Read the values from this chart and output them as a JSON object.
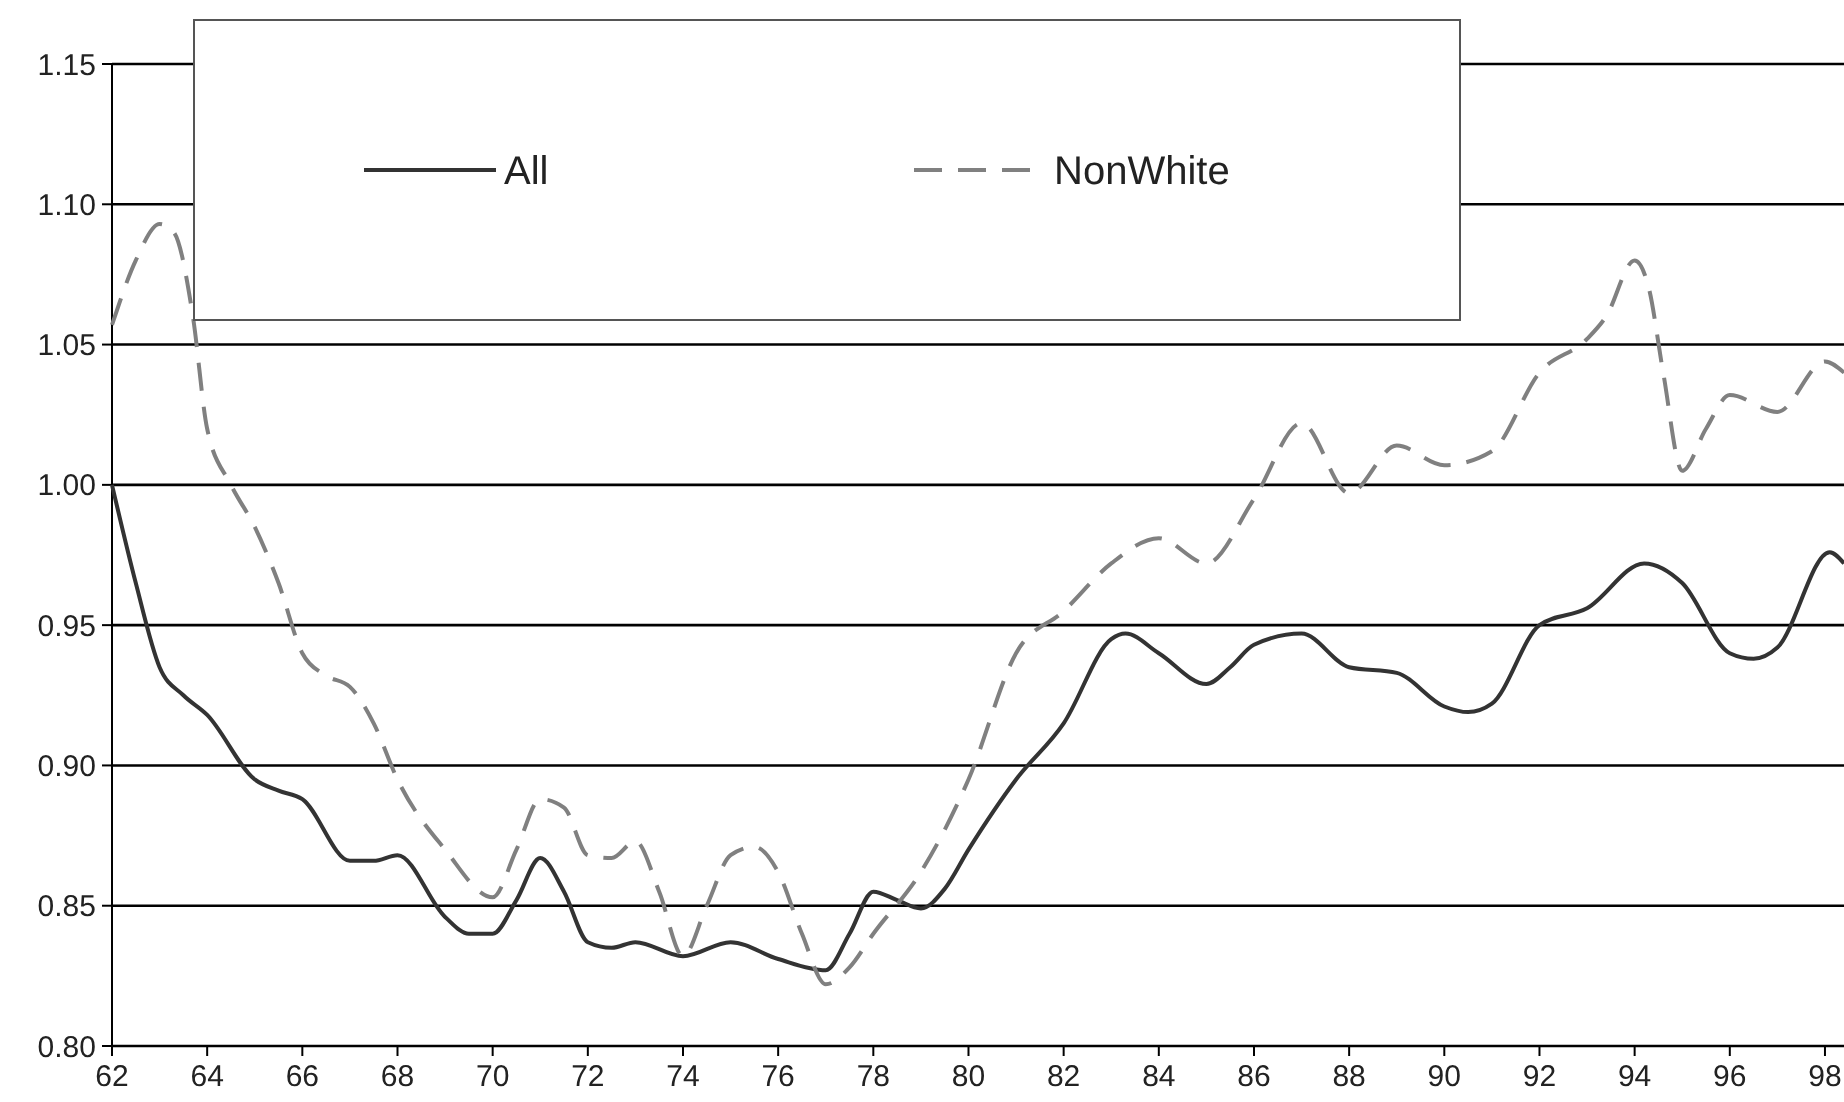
{
  "chart_data": {
    "type": "line",
    "xlim": [
      62,
      98.4
    ],
    "xticks": [
      62,
      64,
      66,
      68,
      70,
      72,
      74,
      76,
      78,
      80,
      82,
      84,
      86,
      88,
      90,
      92,
      94,
      96,
      98
    ],
    "ylim": [
      0.8,
      1.15
    ],
    "yticks": [
      {
        "value": 0.8,
        "label": "0.80"
      },
      {
        "value": 0.85,
        "label": "0.85"
      },
      {
        "value": 0.9,
        "label": "0.90"
      },
      {
        "value": 0.95,
        "label": "0.95"
      },
      {
        "value": 1.0,
        "label": "1.00"
      },
      {
        "value": 1.05,
        "label": "1.05"
      },
      {
        "value": 1.1,
        "label": "1.10"
      },
      {
        "value": 1.15,
        "label": "1.15"
      }
    ],
    "grid": "y",
    "legend": "top",
    "marker": "none",
    "series": [
      {
        "name": "All",
        "color": "#333333",
        "line_style": "solid",
        "x": [
          62,
          62.5,
          63,
          63.5,
          64,
          65,
          65.5,
          66,
          67,
          67.5,
          68,
          69,
          69.5,
          70,
          70.5,
          71,
          71.5,
          72,
          72.5,
          73,
          74,
          75,
          76,
          77,
          77.5,
          78,
          78.5,
          79,
          79.5,
          80,
          81,
          82,
          83,
          83.3,
          84,
          85,
          85.5,
          86,
          87,
          88,
          89,
          90,
          90.5,
          91,
          92,
          93,
          94.2,
          95,
          96,
          96.5,
          97,
          98.1,
          98.4
        ],
        "values": [
          1.0,
          0.965,
          0.935,
          0.925,
          0.918,
          0.895,
          0.891,
          0.888,
          0.866,
          0.866,
          0.868,
          0.846,
          0.84,
          0.84,
          0.852,
          0.867,
          0.855,
          0.837,
          0.835,
          0.837,
          0.832,
          0.837,
          0.831,
          0.827,
          0.84,
          0.855,
          0.852,
          0.849,
          0.856,
          0.87,
          0.895,
          0.915,
          0.945,
          0.947,
          0.94,
          0.929,
          0.935,
          0.943,
          0.947,
          0.935,
          0.933,
          0.921,
          0.919,
          0.922,
          0.95,
          0.956,
          0.972,
          0.965,
          0.94,
          0.938,
          0.942,
          0.976,
          0.972
        ]
      },
      {
        "name": "NonWhite",
        "color": "#808080",
        "line_style": "dashed",
        "x": [
          62,
          62.5,
          63,
          63.3,
          63.7,
          64,
          64.5,
          65,
          65.5,
          66,
          66.5,
          67,
          67.5,
          68,
          69,
          70,
          70.5,
          71,
          71.5,
          72,
          72.5,
          73,
          73.5,
          74,
          74.5,
          75,
          75.5,
          76,
          76.5,
          77,
          77.5,
          78,
          79,
          80,
          81,
          82,
          83,
          84,
          85,
          86,
          87,
          88,
          89,
          90,
          91,
          92,
          93,
          93.4,
          94,
          94.3,
          94.6,
          95,
          95.5,
          96,
          97,
          98,
          98.4
        ],
        "values": [
          1.057,
          1.08,
          1.093,
          1.09,
          1.06,
          1.02,
          1.0,
          0.985,
          0.965,
          0.94,
          0.932,
          0.928,
          0.915,
          0.895,
          0.87,
          0.853,
          0.87,
          0.888,
          0.885,
          0.868,
          0.867,
          0.873,
          0.855,
          0.832,
          0.85,
          0.868,
          0.871,
          0.862,
          0.84,
          0.822,
          0.828,
          0.84,
          0.862,
          0.895,
          0.94,
          0.955,
          0.972,
          0.981,
          0.972,
          0.995,
          1.022,
          0.997,
          1.014,
          1.007,
          1.012,
          1.04,
          1.052,
          1.06,
          1.08,
          1.07,
          1.04,
          1.005,
          1.02,
          1.032,
          1.026,
          1.044,
          1.04
        ]
      }
    ]
  }
}
